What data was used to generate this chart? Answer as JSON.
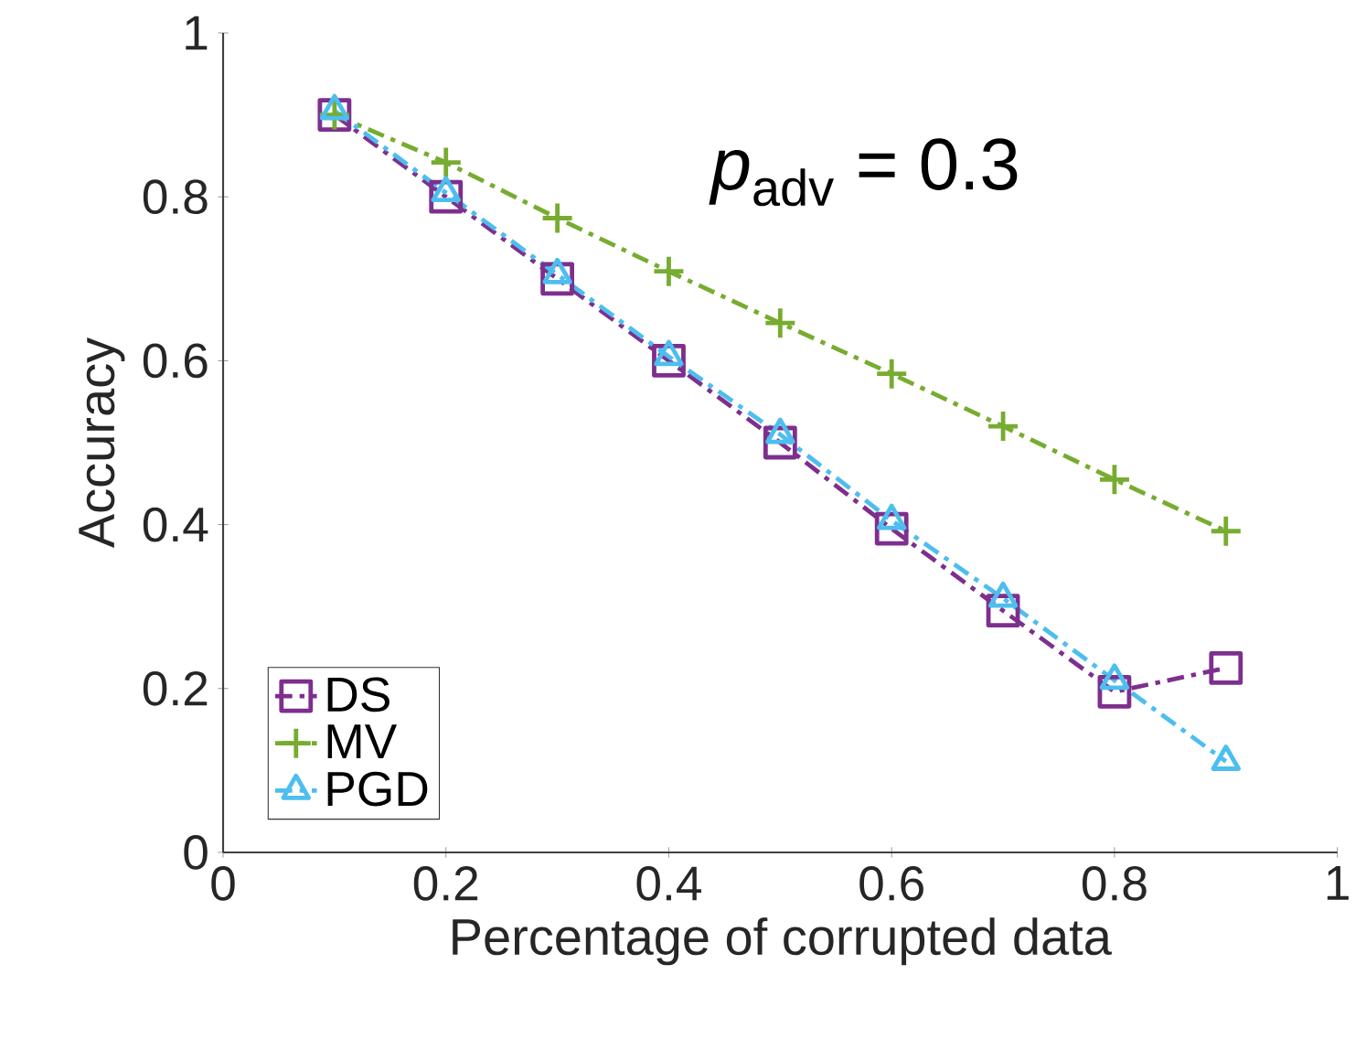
{
  "chart_data": {
    "type": "line",
    "xlabel": "Percentage of corrupted data",
    "ylabel": "Accuracy",
    "annotations": [
      "*p*$_{adv}$ = 0.3"
    ],
    "x": [
      0.1,
      0.2,
      0.3,
      0.4,
      0.5,
      0.6,
      0.7,
      0.8,
      0.9
    ],
    "series": [
      {
        "name": "DS",
        "color": "#7e2f8e",
        "marker": "square",
        "values": [
          0.9,
          0.8,
          0.7,
          0.6,
          0.5,
          0.395,
          0.295,
          0.196,
          0.225
        ]
      },
      {
        "name": "MV",
        "color": "#77ac30",
        "marker": "cross",
        "values": [
          0.9,
          0.842,
          0.774,
          0.709,
          0.646,
          0.584,
          0.52,
          0.455,
          0.392
        ]
      },
      {
        "name": "PGD",
        "color": "#4dbeee",
        "marker": "triangle",
        "values": [
          0.905,
          0.805,
          0.705,
          0.605,
          0.51,
          0.405,
          0.31,
          0.21,
          0.111
        ]
      }
    ],
    "line_style": "dashdot",
    "xlim": [
      0,
      1
    ],
    "ylim": [
      0,
      1
    ],
    "xticks": [
      0,
      0.2,
      0.4,
      0.6,
      0.8,
      1
    ],
    "yticks": [
      0,
      0.2,
      0.4,
      0.6,
      0.8,
      1
    ],
    "grid": false,
    "legend": "bottom left"
  }
}
